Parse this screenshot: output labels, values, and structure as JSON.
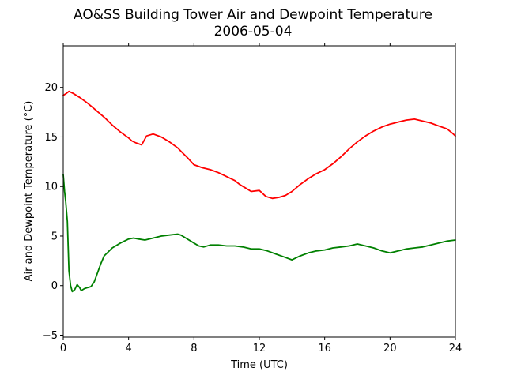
{
  "chart_data": {
    "type": "line",
    "title": "AO&SS Building Tower Air and Dewpoint Temperature",
    "subtitle": "2006-05-04",
    "xlabel": "Time (UTC)",
    "ylabel": "Air and Dewpoint Temperature (°C)",
    "xlim": [
      0,
      24
    ],
    "ylim": [
      -5.2,
      24.2
    ],
    "x_ticks": [
      0,
      4,
      8,
      12,
      16,
      20,
      24
    ],
    "x_tick_labels": [
      "0",
      "4",
      "8",
      "12",
      "16",
      "20",
      "24"
    ],
    "y_ticks": [
      -5,
      0,
      5,
      10,
      15,
      20
    ],
    "y_tick_labels": [
      "−5",
      "0",
      "5",
      "10",
      "15",
      "20"
    ],
    "grid": false,
    "series": [
      {
        "color": "#ff0000",
        "x": [
          0,
          0.2,
          0.35,
          0.6,
          1,
          1.5,
          2,
          2.5,
          3,
          3.5,
          4,
          4.2,
          4.45,
          4.8,
          5.1,
          5.5,
          6,
          6.5,
          7,
          7.3,
          7.6,
          8,
          8.5,
          9,
          9.5,
          10,
          10.5,
          10.8,
          11.2,
          11.5,
          12,
          12.4,
          12.8,
          13.2,
          13.6,
          14,
          14.5,
          15,
          15.5,
          16,
          16.5,
          17,
          17.5,
          18,
          18.5,
          19,
          19.5,
          20,
          20.5,
          21,
          21.5,
          22,
          22.5,
          23,
          23.5,
          23.8,
          24
        ],
        "y": [
          19.2,
          19.4,
          19.6,
          19.4,
          19.0,
          18.4,
          17.7,
          17.0,
          16.2,
          15.5,
          14.9,
          14.6,
          14.4,
          14.2,
          15.1,
          15.3,
          15.0,
          14.5,
          13.9,
          13.4,
          12.9,
          12.2,
          11.9,
          11.7,
          11.4,
          11.0,
          10.6,
          10.2,
          9.8,
          9.5,
          9.6,
          9.0,
          8.8,
          8.9,
          9.1,
          9.5,
          10.2,
          10.8,
          11.3,
          11.7,
          12.3,
          13.0,
          13.8,
          14.5,
          15.1,
          15.6,
          16.0,
          16.3,
          16.5,
          16.7,
          16.8,
          16.6,
          16.4,
          16.1,
          15.8,
          15.4,
          15.1
        ]
      },
      {
        "color": "#008000",
        "x": [
          0,
          0.08,
          0.15,
          0.25,
          0.3,
          0.35,
          0.45,
          0.55,
          0.7,
          0.85,
          1,
          1.1,
          1.3,
          1.5,
          1.7,
          1.9,
          2.1,
          2.3,
          2.5,
          3,
          3.5,
          4,
          4.3,
          4.6,
          5,
          5.5,
          6,
          6.5,
          7,
          7.2,
          7.5,
          8,
          8.3,
          8.6,
          9,
          9.5,
          10,
          10.5,
          11,
          11.5,
          12,
          12.5,
          13,
          13.5,
          14,
          14.5,
          15,
          15.5,
          16,
          16.5,
          17,
          17.5,
          18,
          18.5,
          19,
          19.5,
          20,
          20.5,
          21,
          21.5,
          22,
          22.5,
          23,
          23.5,
          24
        ],
        "y": [
          11.2,
          9.5,
          8.5,
          6.5,
          4.0,
          1.5,
          0.0,
          -0.6,
          -0.4,
          0.1,
          -0.2,
          -0.5,
          -0.3,
          -0.2,
          -0.1,
          0.4,
          1.3,
          2.2,
          3.0,
          3.8,
          4.3,
          4.7,
          4.8,
          4.7,
          4.6,
          4.8,
          5.0,
          5.1,
          5.2,
          5.1,
          4.8,
          4.3,
          4.0,
          3.9,
          4.1,
          4.1,
          4.0,
          4.0,
          3.9,
          3.7,
          3.7,
          3.5,
          3.2,
          2.9,
          2.6,
          3.0,
          3.3,
          3.5,
          3.6,
          3.8,
          3.9,
          4.0,
          4.2,
          4.0,
          3.8,
          3.5,
          3.3,
          3.5,
          3.7,
          3.8,
          3.9,
          4.1,
          4.3,
          4.5,
          4.6
        ]
      }
    ]
  }
}
